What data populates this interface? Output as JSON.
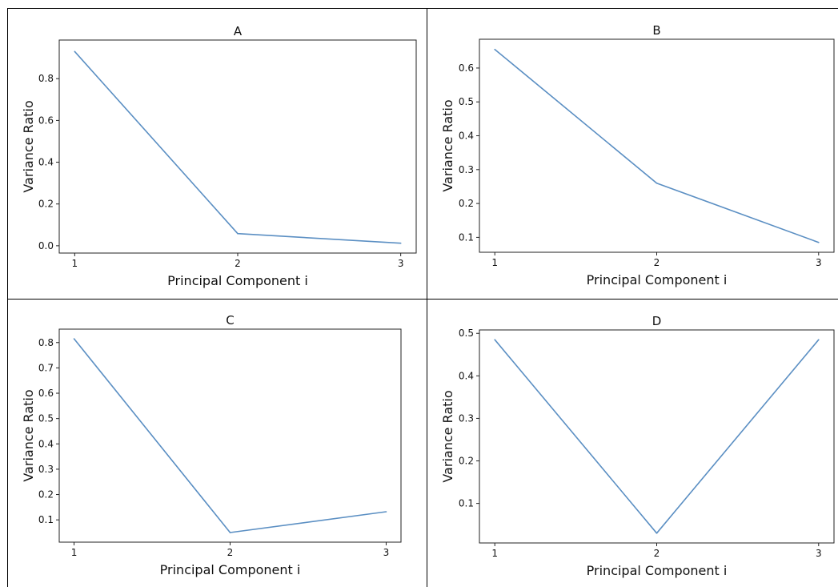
{
  "figure": {
    "colors": {
      "line": "#5b8fc3",
      "axis": "#222222",
      "cell_border": "#000000"
    }
  },
  "chart_data": [
    {
      "type": "line",
      "title": "A",
      "xlabel": "Principal Component i",
      "ylabel": "Variance Ratio",
      "x": [
        1,
        2,
        3
      ],
      "series": [
        {
          "values": [
            0.93,
            0.058,
            0.012
          ]
        }
      ],
      "xticks": [
        1,
        2,
        3
      ],
      "yticks": [
        0.0,
        0.2,
        0.4,
        0.6,
        0.8
      ],
      "ytick_labels": [
        "0.0",
        "0.2",
        "0.4",
        "0.6",
        "0.8"
      ],
      "ylim": [
        -0.035,
        0.985
      ],
      "grid": false
    },
    {
      "type": "line",
      "title": "B",
      "xlabel": "Principal Component i",
      "ylabel": "Variance Ratio",
      "x": [
        1,
        2,
        3
      ],
      "series": [
        {
          "values": [
            0.655,
            0.26,
            0.085
          ]
        }
      ],
      "xticks": [
        1,
        2,
        3
      ],
      "yticks": [
        0.1,
        0.2,
        0.3,
        0.4,
        0.5,
        0.6
      ],
      "ytick_labels": [
        "0.1",
        "0.2",
        "0.3",
        "0.4",
        "0.5",
        "0.6"
      ],
      "ylim": [
        0.056,
        0.685
      ],
      "grid": false
    },
    {
      "type": "line",
      "title": "C",
      "xlabel": "Principal Component i",
      "ylabel": "Variance Ratio",
      "x": [
        1,
        2,
        3
      ],
      "series": [
        {
          "values": [
            0.815,
            0.05,
            0.132
          ]
        }
      ],
      "xticks": [
        1,
        2,
        3
      ],
      "yticks": [
        0.1,
        0.2,
        0.3,
        0.4,
        0.5,
        0.6,
        0.7,
        0.8
      ],
      "ytick_labels": [
        "0.1",
        "0.2",
        "0.3",
        "0.4",
        "0.5",
        "0.6",
        "0.7",
        "0.8"
      ],
      "ylim": [
        0.012,
        0.853
      ],
      "grid": false
    },
    {
      "type": "line",
      "title": "D",
      "xlabel": "Principal Component i",
      "ylabel": "Variance Ratio",
      "x": [
        1,
        2,
        3
      ],
      "series": [
        {
          "values": [
            0.485,
            0.03,
            0.485
          ]
        }
      ],
      "xticks": [
        1,
        2,
        3
      ],
      "yticks": [
        0.1,
        0.2,
        0.3,
        0.4,
        0.5
      ],
      "ytick_labels": [
        "0.1",
        "0.2",
        "0.3",
        "0.4",
        "0.5"
      ],
      "ylim": [
        0.007,
        0.508
      ],
      "grid": false
    }
  ]
}
